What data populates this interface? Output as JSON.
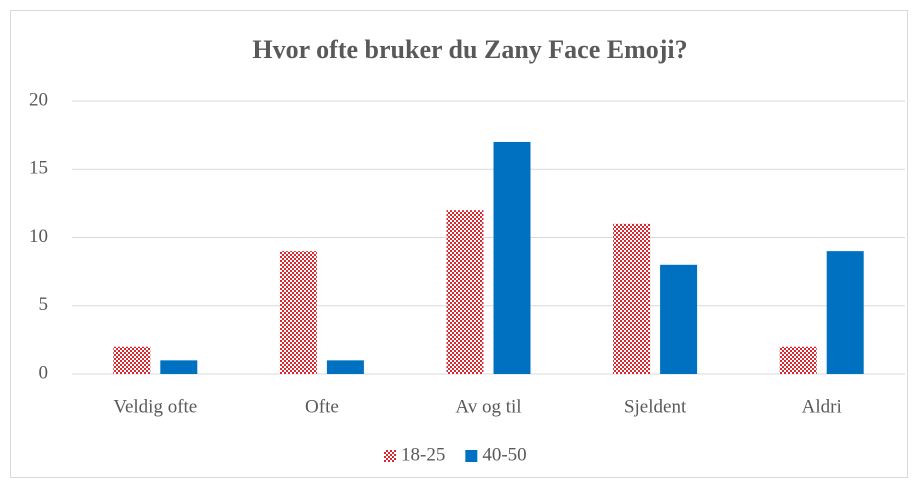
{
  "chart_data": {
    "type": "bar",
    "title": "Hvor ofte bruker du Zany Face Emoji?",
    "categories": [
      "Veldig ofte",
      "Ofte",
      "Av og til",
      "Sjeldent",
      "Aldri"
    ],
    "series": [
      {
        "name": "18-25",
        "color": "#d9282f",
        "pattern": "checker",
        "values": [
          2,
          9,
          12,
          11,
          2
        ]
      },
      {
        "name": "40-50",
        "color": "#0070c0",
        "values": [
          1,
          1,
          17,
          8,
          9
        ]
      }
    ],
    "ylim": [
      0,
      20
    ],
    "yticks": [
      0,
      5,
      10,
      15,
      20
    ],
    "grid": true,
    "legend": "bottom"
  }
}
